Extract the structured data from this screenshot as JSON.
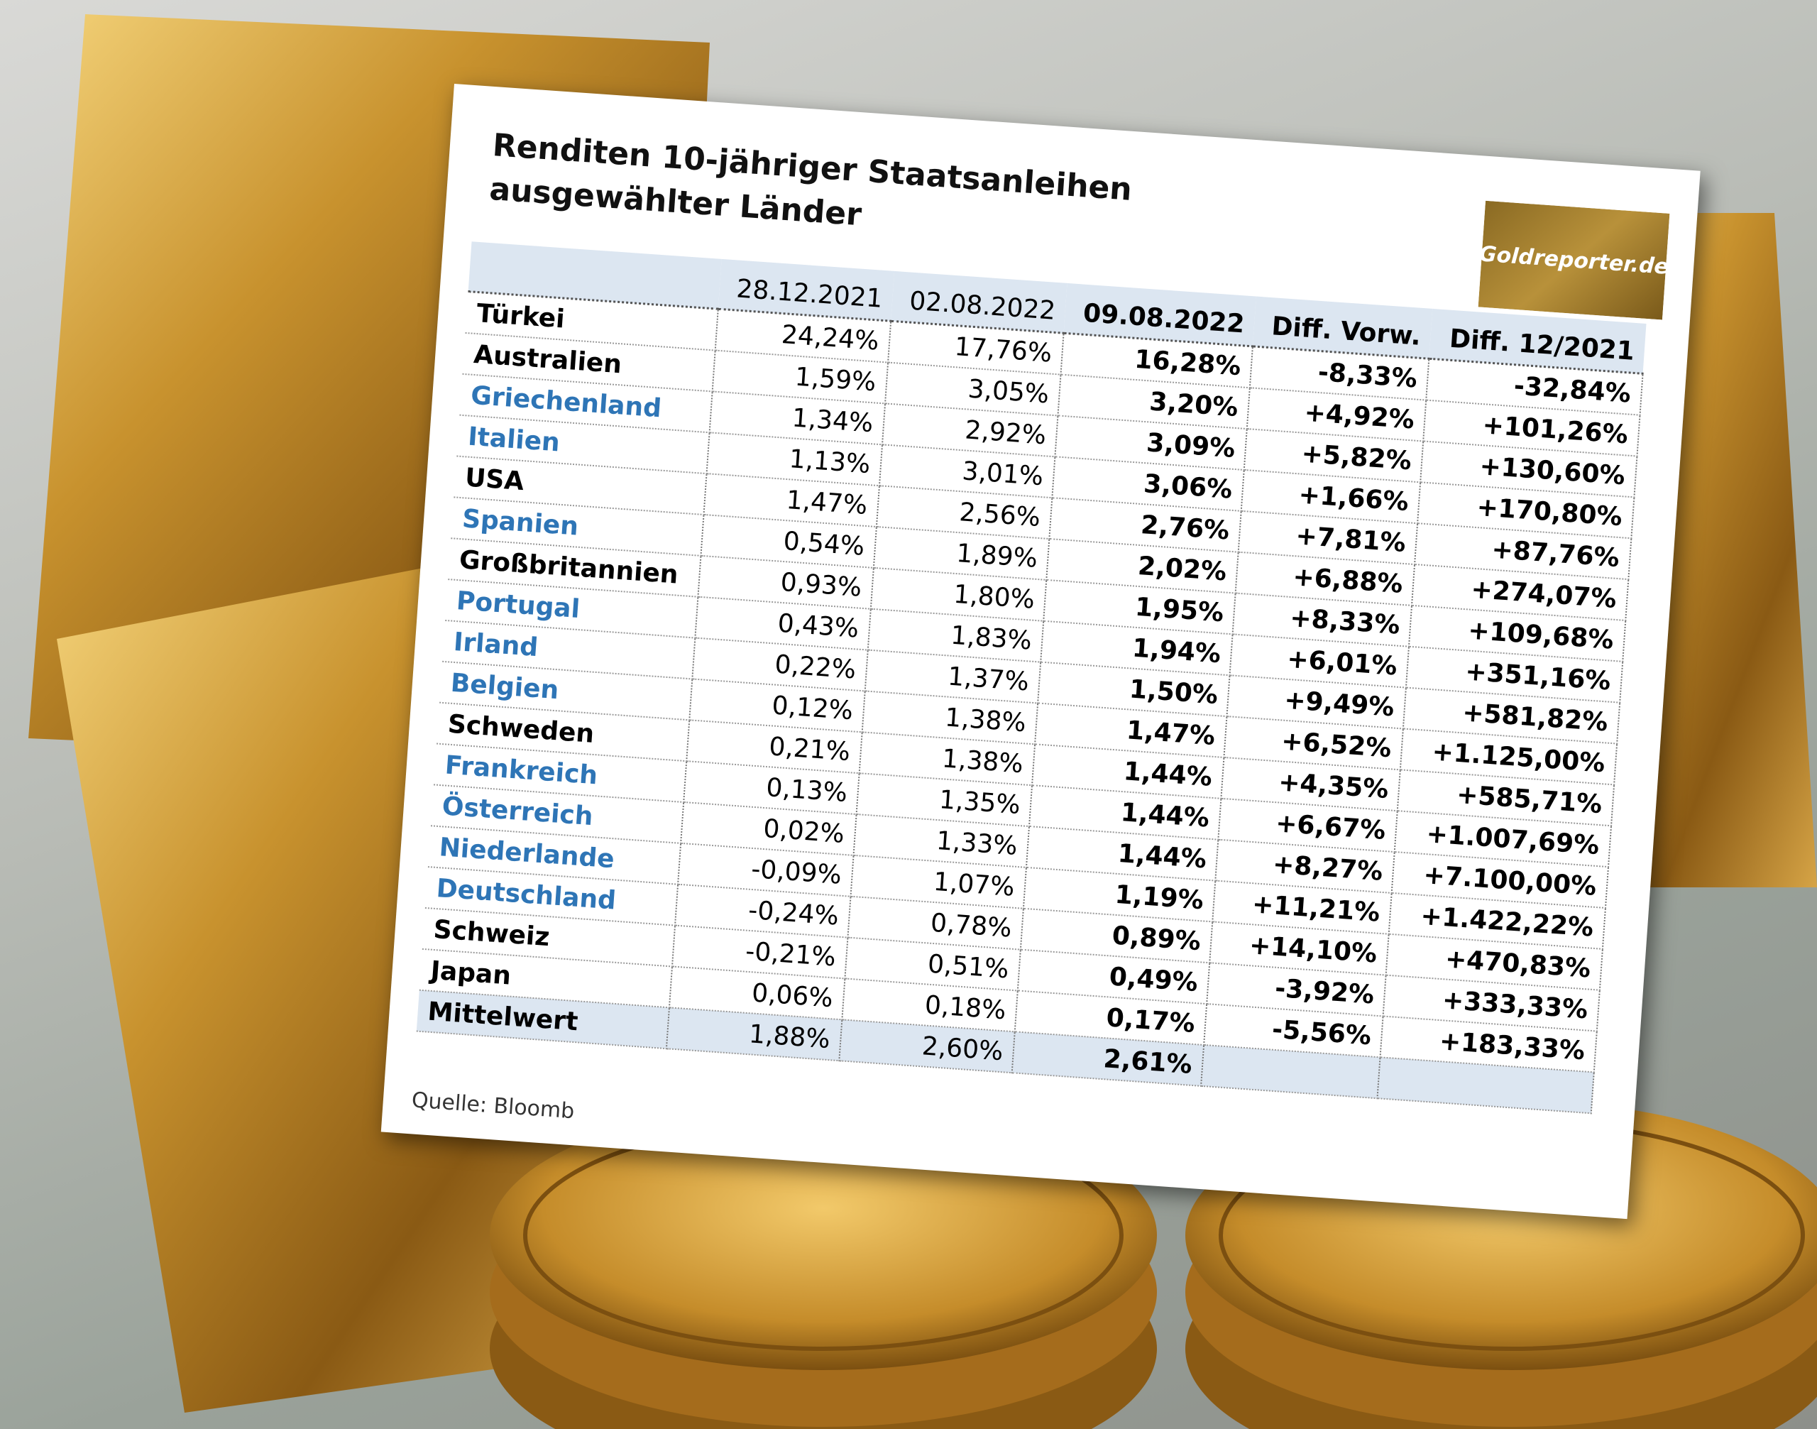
{
  "header": {
    "title_line1": "Renditen 10-jähriger Staatsanleihen",
    "title_line2": "ausgewählter Länder",
    "logo": "Goldreporter.de"
  },
  "table": {
    "columns": [
      "28.12.2021",
      "02.08.2022",
      "09.08.2022",
      "Diff. Vorw.",
      "Diff. 12/2021"
    ],
    "rows": [
      {
        "label": "Türkei",
        "color": "#000000",
        "values": [
          "24,24%",
          "17,76%",
          "16,28%",
          "-8,33%",
          "-32,84%"
        ]
      },
      {
        "label": "Australien",
        "color": "#000000",
        "values": [
          "1,59%",
          "3,05%",
          "3,20%",
          "+4,92%",
          "+101,26%"
        ]
      },
      {
        "label": "Griechenland",
        "color": "#2e75b6",
        "values": [
          "1,34%",
          "2,92%",
          "3,09%",
          "+5,82%",
          "+130,60%"
        ]
      },
      {
        "label": "Italien",
        "color": "#2e75b6",
        "values": [
          "1,13%",
          "3,01%",
          "3,06%",
          "+1,66%",
          "+170,80%"
        ]
      },
      {
        "label": "USA",
        "color": "#000000",
        "values": [
          "1,47%",
          "2,56%",
          "2,76%",
          "+7,81%",
          "+87,76%"
        ]
      },
      {
        "label": "Spanien",
        "color": "#2e75b6",
        "values": [
          "0,54%",
          "1,89%",
          "2,02%",
          "+6,88%",
          "+274,07%"
        ]
      },
      {
        "label": "Großbritannien",
        "color": "#000000",
        "values": [
          "0,93%",
          "1,80%",
          "1,95%",
          "+8,33%",
          "+109,68%"
        ]
      },
      {
        "label": "Portugal",
        "color": "#2e75b6",
        "values": [
          "0,43%",
          "1,83%",
          "1,94%",
          "+6,01%",
          "+351,16%"
        ]
      },
      {
        "label": "Irland",
        "color": "#2e75b6",
        "values": [
          "0,22%",
          "1,37%",
          "1,50%",
          "+9,49%",
          "+581,82%"
        ]
      },
      {
        "label": "Belgien",
        "color": "#2e75b6",
        "values": [
          "0,12%",
          "1,38%",
          "1,47%",
          "+6,52%",
          "+1.125,00%"
        ]
      },
      {
        "label": "Schweden",
        "color": "#000000",
        "values": [
          "0,21%",
          "1,38%",
          "1,44%",
          "+4,35%",
          "+585,71%"
        ]
      },
      {
        "label": "Frankreich",
        "color": "#2e75b6",
        "values": [
          "0,13%",
          "1,35%",
          "1,44%",
          "+6,67%",
          "+1.007,69%"
        ]
      },
      {
        "label": "Österreich",
        "color": "#2e75b6",
        "values": [
          "0,02%",
          "1,33%",
          "1,44%",
          "+8,27%",
          "+7.100,00%"
        ]
      },
      {
        "label": "Niederlande",
        "color": "#2e75b6",
        "values": [
          "-0,09%",
          "1,07%",
          "1,19%",
          "+11,21%",
          "+1.422,22%"
        ]
      },
      {
        "label": "Deutschland",
        "color": "#2e75b6",
        "values": [
          "-0,24%",
          "0,78%",
          "0,89%",
          "+14,10%",
          "+470,83%"
        ]
      },
      {
        "label": "Schweiz",
        "color": "#000000",
        "values": [
          "-0,21%",
          "0,51%",
          "0,49%",
          "-3,92%",
          "+333,33%"
        ]
      },
      {
        "label": "Japan",
        "color": "#000000",
        "values": [
          "0,06%",
          "0,18%",
          "0,17%",
          "-5,56%",
          "+183,33%"
        ]
      },
      {
        "label": "Mittelwert",
        "color": "#000000",
        "values": [
          "1,88%",
          "2,60%",
          "2,61%"
        ]
      }
    ]
  },
  "footer": {
    "source": "Quelle: Bloomb"
  }
}
